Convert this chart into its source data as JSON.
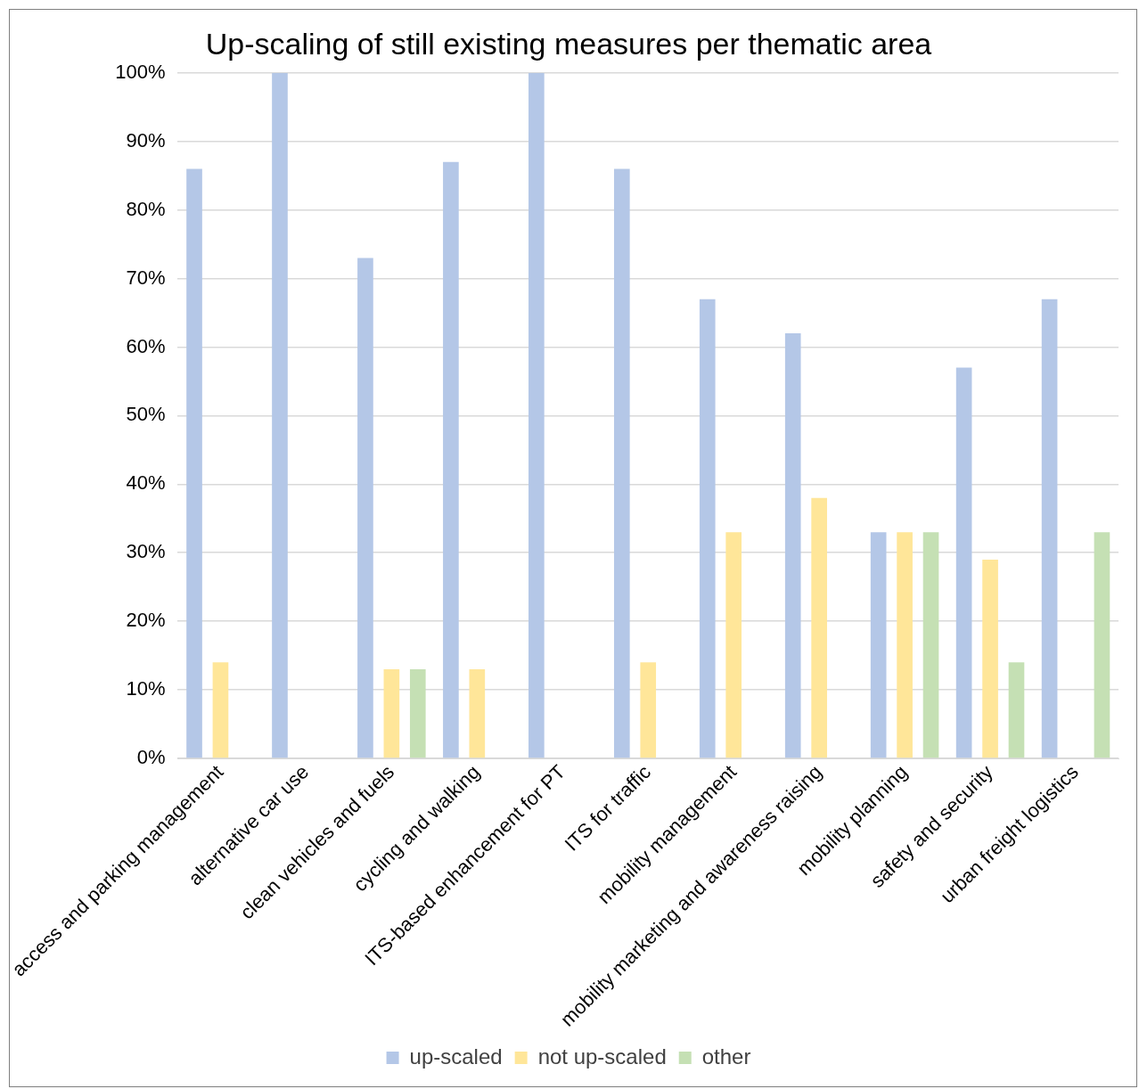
{
  "chart_data": {
    "type": "bar",
    "title": "Up-scaling of still existing measures per thematic area",
    "categories": [
      "access and parking management",
      "alternative car use",
      "clean vehicles and fuels",
      "cycling and walking",
      "ITS-based enhancement for PT",
      "ITS for traffic",
      "mobility management",
      "mobility marketing and awareness raising",
      "mobility planning",
      "safety and security",
      "urban freight logistics"
    ],
    "series": [
      {
        "name": "up-scaled",
        "color": "#b4c7e7",
        "values": [
          86,
          100,
          73,
          87,
          100,
          86,
          67,
          62,
          33,
          57,
          67
        ]
      },
      {
        "name": "not up-scaled",
        "color": "#ffe699",
        "values": [
          14,
          0,
          13,
          13,
          0,
          14,
          33,
          38,
          33,
          29,
          0
        ]
      },
      {
        "name": "other",
        "color": "#c5e0b4",
        "values": [
          0,
          0,
          13,
          0,
          0,
          0,
          0,
          0,
          33,
          14,
          33
        ]
      }
    ],
    "ylim": [
      0,
      100
    ],
    "yticks": [
      {
        "value": 0,
        "label": "0%"
      },
      {
        "value": 10,
        "label": "10%"
      },
      {
        "value": 20,
        "label": "20%"
      },
      {
        "value": 30,
        "label": "30%"
      },
      {
        "value": 40,
        "label": "40%"
      },
      {
        "value": 50,
        "label": "50%"
      },
      {
        "value": 60,
        "label": "60%"
      },
      {
        "value": 70,
        "label": "70%"
      },
      {
        "value": 80,
        "label": "80%"
      },
      {
        "value": 90,
        "label": "90%"
      },
      {
        "value": 100,
        "label": "100%"
      }
    ],
    "grid": "y",
    "legend": "bottom"
  }
}
